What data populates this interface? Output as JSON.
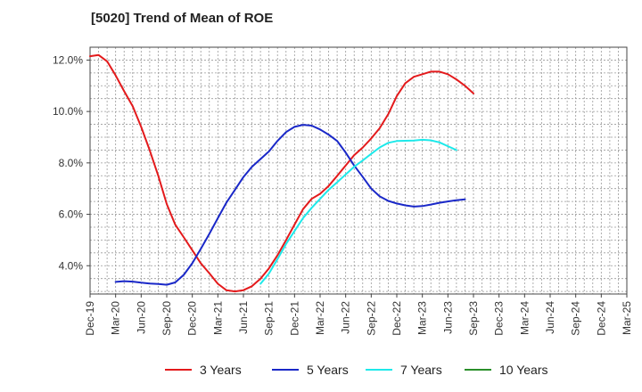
{
  "title": "[5020]  Trend of Mean of ROE",
  "chart_data": {
    "type": "line",
    "title": "[5020]  Trend of Mean of ROE",
    "xlabel": "",
    "ylabel": "",
    "x_ticks": [
      "Dec-19",
      "Mar-20",
      "Jun-20",
      "Sep-20",
      "Dec-20",
      "Mar-21",
      "Jun-21",
      "Sep-21",
      "Dec-21",
      "Mar-22",
      "Jun-22",
      "Sep-22",
      "Dec-22",
      "Mar-23",
      "Jun-23",
      "Sep-23",
      "Dec-23",
      "Mar-24",
      "Jun-24",
      "Sep-24",
      "Dec-24",
      "Mar-25"
    ],
    "y_ticks": [
      "4.0%",
      "6.0%",
      "8.0%",
      "10.0%",
      "12.0%"
    ],
    "y_tick_values": [
      4,
      6,
      8,
      10,
      12
    ],
    "ylim": [
      2.9,
      12.5
    ],
    "grid": true,
    "legend_position": "bottom",
    "series": [
      {
        "name": "3 Years",
        "color": "#e31a1c",
        "points": [
          [
            0,
            12.15
          ],
          [
            0.33,
            12.2
          ],
          [
            0.67,
            11.95
          ],
          [
            1,
            11.4
          ],
          [
            1.33,
            10.8
          ],
          [
            1.67,
            10.2
          ],
          [
            2,
            9.4
          ],
          [
            2.33,
            8.5
          ],
          [
            2.67,
            7.5
          ],
          [
            3,
            6.4
          ],
          [
            3.33,
            5.6
          ],
          [
            3.67,
            5.1
          ],
          [
            4,
            4.6
          ],
          [
            4.33,
            4.1
          ],
          [
            4.67,
            3.7
          ],
          [
            5,
            3.3
          ],
          [
            5.33,
            3.05
          ],
          [
            5.67,
            3.0
          ],
          [
            6,
            3.05
          ],
          [
            6.33,
            3.2
          ],
          [
            6.67,
            3.5
          ],
          [
            7,
            3.9
          ],
          [
            7.33,
            4.4
          ],
          [
            7.67,
            5.0
          ],
          [
            8,
            5.6
          ],
          [
            8.33,
            6.2
          ],
          [
            8.67,
            6.6
          ],
          [
            9,
            6.8
          ],
          [
            9.33,
            7.1
          ],
          [
            9.67,
            7.5
          ],
          [
            10,
            7.9
          ],
          [
            10.33,
            8.3
          ],
          [
            10.67,
            8.6
          ],
          [
            11,
            8.95
          ],
          [
            11.33,
            9.35
          ],
          [
            11.67,
            9.9
          ],
          [
            12,
            10.6
          ],
          [
            12.33,
            11.1
          ],
          [
            12.67,
            11.35
          ],
          [
            13,
            11.45
          ],
          [
            13.33,
            11.55
          ],
          [
            13.67,
            11.55
          ],
          [
            14,
            11.45
          ],
          [
            14.33,
            11.25
          ],
          [
            14.67,
            11.0
          ],
          [
            15,
            10.7
          ]
        ]
      },
      {
        "name": "5 Years",
        "color": "#1a28c8",
        "points": [
          [
            1,
            3.37
          ],
          [
            1.33,
            3.4
          ],
          [
            1.67,
            3.38
          ],
          [
            2,
            3.34
          ],
          [
            2.33,
            3.31
          ],
          [
            2.67,
            3.29
          ],
          [
            3,
            3.26
          ],
          [
            3.33,
            3.35
          ],
          [
            3.67,
            3.65
          ],
          [
            4,
            4.1
          ],
          [
            4.33,
            4.65
          ],
          [
            4.67,
            5.25
          ],
          [
            5,
            5.85
          ],
          [
            5.33,
            6.45
          ],
          [
            5.67,
            6.95
          ],
          [
            6,
            7.45
          ],
          [
            6.33,
            7.85
          ],
          [
            6.67,
            8.15
          ],
          [
            7,
            8.45
          ],
          [
            7.33,
            8.85
          ],
          [
            7.67,
            9.2
          ],
          [
            8,
            9.4
          ],
          [
            8.33,
            9.48
          ],
          [
            8.67,
            9.45
          ],
          [
            9,
            9.3
          ],
          [
            9.33,
            9.1
          ],
          [
            9.67,
            8.85
          ],
          [
            10,
            8.4
          ],
          [
            10.33,
            7.9
          ],
          [
            10.67,
            7.45
          ],
          [
            11,
            7.0
          ],
          [
            11.33,
            6.7
          ],
          [
            11.67,
            6.52
          ],
          [
            12,
            6.42
          ],
          [
            12.33,
            6.35
          ],
          [
            12.67,
            6.3
          ],
          [
            13,
            6.32
          ],
          [
            13.33,
            6.38
          ],
          [
            13.67,
            6.45
          ],
          [
            14,
            6.5
          ],
          [
            14.33,
            6.55
          ],
          [
            14.67,
            6.58
          ]
        ]
      },
      {
        "name": "7 Years",
        "color": "#1de9ea",
        "points": [
          [
            6.67,
            3.3
          ],
          [
            7,
            3.7
          ],
          [
            7.33,
            4.25
          ],
          [
            7.67,
            4.85
          ],
          [
            8,
            5.35
          ],
          [
            8.33,
            5.85
          ],
          [
            8.67,
            6.25
          ],
          [
            9,
            6.6
          ],
          [
            9.33,
            6.95
          ],
          [
            9.67,
            7.25
          ],
          [
            10,
            7.55
          ],
          [
            10.33,
            7.85
          ],
          [
            10.67,
            8.1
          ],
          [
            11,
            8.35
          ],
          [
            11.33,
            8.6
          ],
          [
            11.67,
            8.78
          ],
          [
            12,
            8.85
          ],
          [
            12.33,
            8.86
          ],
          [
            12.67,
            8.87
          ],
          [
            13,
            8.9
          ],
          [
            13.33,
            8.88
          ],
          [
            13.67,
            8.8
          ],
          [
            14,
            8.65
          ],
          [
            14.33,
            8.5
          ]
        ]
      },
      {
        "name": "10 Years",
        "color": "#2a8f2a",
        "points": []
      }
    ]
  }
}
